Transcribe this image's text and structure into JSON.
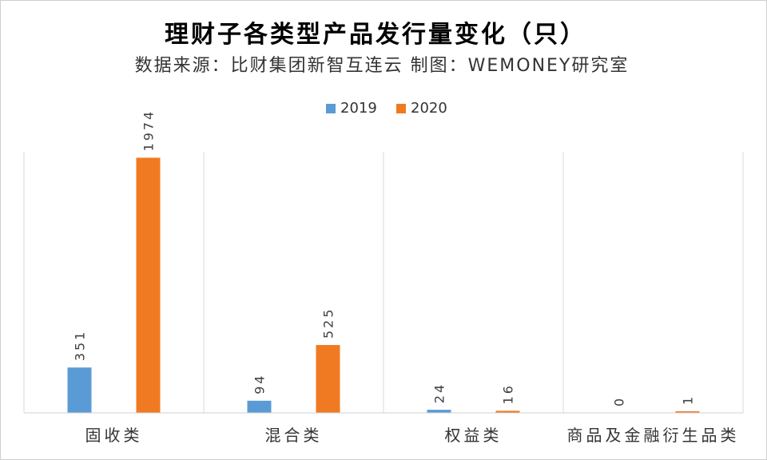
{
  "chart_data": {
    "type": "bar",
    "title": "理财子各类型产品发行量变化（只）",
    "subtitle": "数据来源：比财集团新智互连云 制图：WEMONEY研究室",
    "categories": [
      "固收类",
      "混合类",
      "权益类",
      "商品及金融衍生品类"
    ],
    "series": [
      {
        "name": "2019",
        "values": [
          351,
          94,
          24,
          0
        ],
        "color": "#5B9BD5"
      },
      {
        "name": "2020",
        "values": [
          1974,
          525,
          16,
          1
        ],
        "color": "#F07A22"
      }
    ],
    "ylim": [
      0,
      2000
    ],
    "grid": false,
    "legend_position": "top-center"
  }
}
